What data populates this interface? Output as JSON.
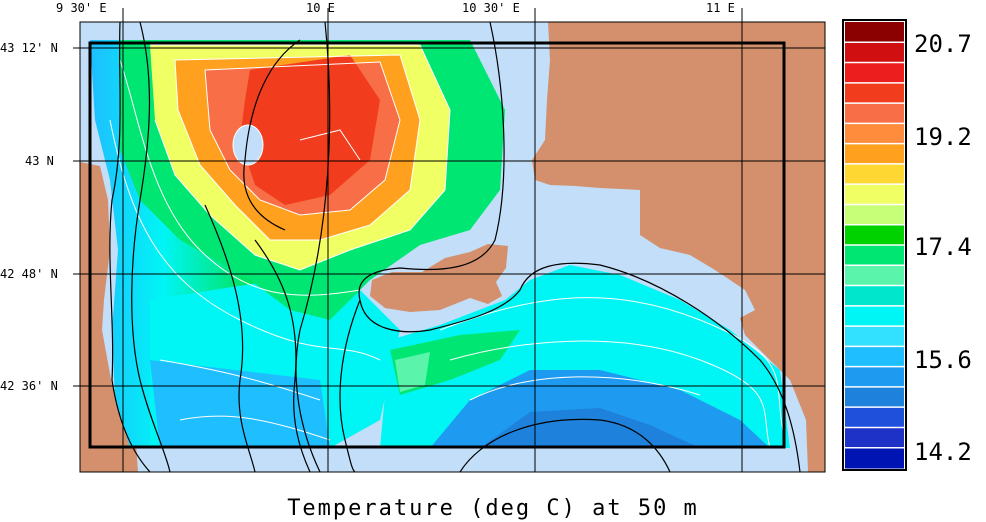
{
  "map": {
    "caption": "Temperature (deg C) at 50 m",
    "longitude_labels": [
      "9 30' E",
      "10 E",
      "10 30' E",
      "11 E"
    ],
    "latitude_labels": [
      "43 12' N",
      "43 N",
      "42 48' N",
      "42 36' N"
    ]
  },
  "colorbar": {
    "tick_labels": [
      "20.7",
      "19.2",
      "17.4",
      "15.6",
      "14.2"
    ],
    "range": [
      14.2,
      20.7
    ],
    "colors": [
      "#8b0000",
      "#d01010",
      "#ec1e1e",
      "#f23c1e",
      "#f86e46",
      "#ff8c3c",
      "#ffa01e",
      "#ffd732",
      "#f0ff64",
      "#c8ff78",
      "#00d200",
      "#00e673",
      "#5af5aa",
      "#00e6cd",
      "#00f5f5",
      "#32e1ff",
      "#1ebeff",
      "#1e9bf0",
      "#1e82dc",
      "#1e50dc",
      "#1e32c8",
      "#0014b4"
    ]
  },
  "colors": {
    "land": "#d4906c",
    "shallow_sea": "#c2def8",
    "frame": "#000000"
  }
}
